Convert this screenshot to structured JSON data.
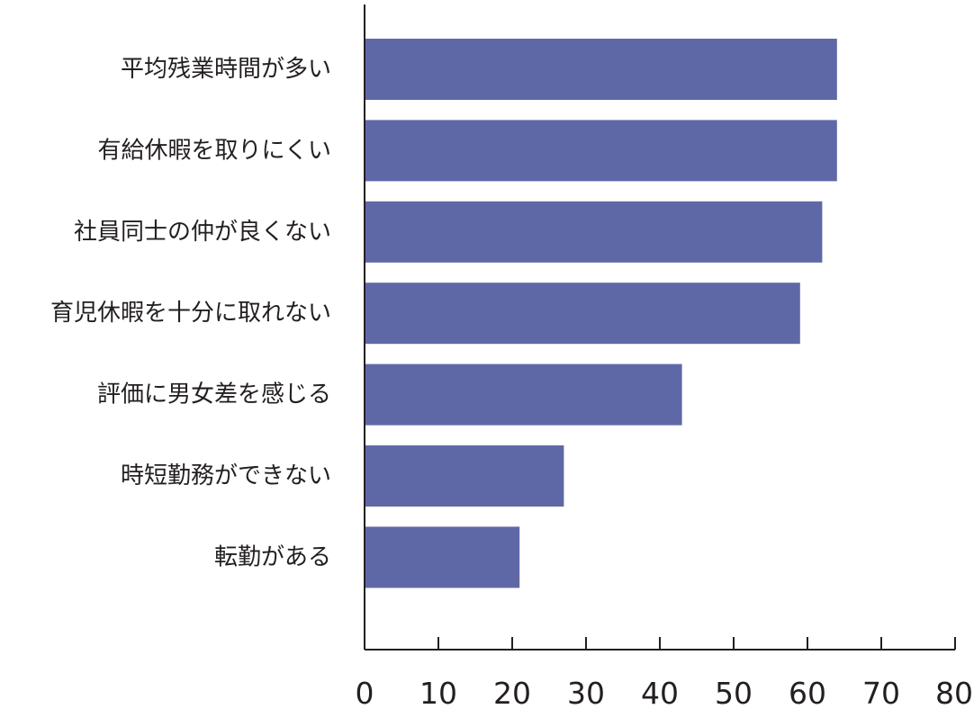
{
  "chart_data": {
    "type": "bar",
    "orientation": "horizontal",
    "categories": [
      "平均残業時間が多い",
      "有給休暇を取りにくい",
      "社員同士の仲が良くない",
      "育児休暇を十分に取れない",
      "評価に男女差を感じる",
      "時短勤務ができない",
      "転勤がある"
    ],
    "values": [
      64,
      64,
      62,
      59,
      43,
      27,
      21
    ],
    "xlim": [
      0,
      80
    ],
    "xticks": [
      0,
      10,
      20,
      30,
      40,
      50,
      60,
      70,
      80
    ],
    "title": "",
    "xlabel": "",
    "ylabel": "",
    "bar_color": "#5f68a6",
    "grid": false,
    "legend": "none"
  }
}
